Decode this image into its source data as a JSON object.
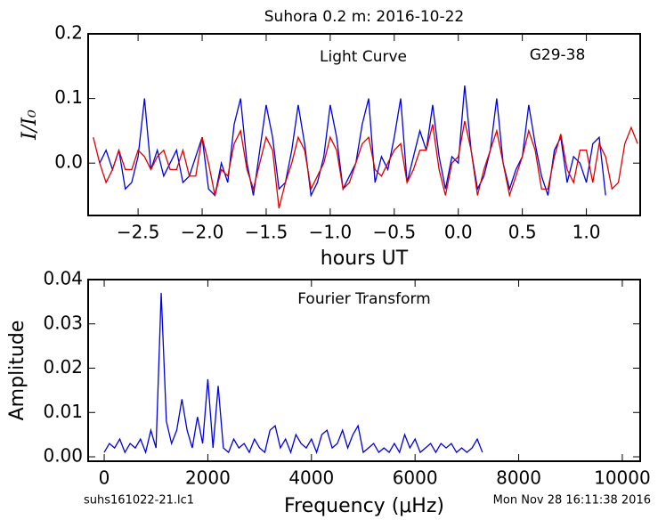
{
  "title": "Suhora 0.2 m:  2016-10-22",
  "footer": {
    "left": "suhs161022-21.lc1",
    "right": "Mon Nov 28 16:11:38 2016"
  },
  "chart_data": [
    {
      "type": "line",
      "title": "Light Curve",
      "annotation": "G29-38",
      "xlabel": "hours UT",
      "ylabel": "I/I₀",
      "xlim": [
        -2.89,
        1.42
      ],
      "ylim": [
        -0.081,
        0.2
      ],
      "xticks": [
        {
          "value": -2.5,
          "label": "−2.5"
        },
        {
          "value": -2.0,
          "label": "−2.0"
        },
        {
          "value": -1.5,
          "label": "−1.5"
        },
        {
          "value": -1.0,
          "label": "−1.0"
        },
        {
          "value": -0.5,
          "label": "−0.5"
        },
        {
          "value": 0,
          "label": "0.0"
        },
        0.5,
        {
          "value": 1.0,
          "label": "1.0"
        }
      ],
      "yticks": [
        {
          "value": 0,
          "label": "0.0"
        },
        0.1,
        0.2
      ],
      "series": [
        {
          "color": "#0000dd",
          "x": [
            -2.8,
            -2.75,
            -2.7,
            -2.65,
            -2.6,
            -2.55,
            -2.5,
            -2.45,
            -2.4,
            -2.35,
            -2.3,
            -2.25,
            -2.2,
            -2.15,
            -2.1,
            -2.05,
            -2.0,
            -1.95,
            -1.9,
            -1.85,
            -1.8,
            -1.75,
            -1.7,
            -1.65,
            -1.6,
            -1.55,
            -1.5,
            -1.45,
            -1.4,
            -1.35,
            -1.3,
            -1.25,
            -1.2,
            -1.15,
            -1.1,
            -1.05,
            -1.0,
            -0.95,
            -0.9,
            -0.85,
            -0.8,
            -0.75,
            -0.7,
            -0.65,
            -0.6,
            -0.55,
            -0.5,
            -0.45,
            -0.4,
            -0.35,
            -0.3,
            -0.25,
            -0.2,
            -0.15,
            -0.1,
            -0.05,
            0.0,
            0.05,
            0.1,
            0.15,
            0.2,
            0.25,
            0.3,
            0.35,
            0.4,
            0.45,
            0.5,
            0.55,
            0.6,
            0.65,
            0.7,
            0.75,
            0.8,
            0.85,
            0.9,
            0.95,
            1.0,
            1.05,
            1.1,
            1.15
          ],
          "values": [
            0.0,
            0.02,
            -0.01,
            0.02,
            -0.04,
            -0.03,
            0.01,
            0.1,
            -0.01,
            0.02,
            -0.02,
            0.0,
            0.02,
            -0.03,
            -0.02,
            0.01,
            0.04,
            -0.04,
            -0.05,
            0.0,
            -0.03,
            0.06,
            0.1,
            0.0,
            -0.05,
            0.02,
            0.09,
            0.04,
            -0.04,
            -0.03,
            0.02,
            0.09,
            0.03,
            -0.05,
            -0.03,
            0.01,
            0.09,
            0.04,
            -0.04,
            -0.02,
            0.0,
            0.06,
            0.1,
            -0.03,
            0.01,
            -0.01,
            0.04,
            0.1,
            -0.03,
            0.01,
            0.05,
            0.02,
            0.09,
            0.01,
            -0.04,
            0.01,
            0.0,
            0.12,
            0.02,
            -0.04,
            -0.02,
            0.02,
            0.1,
            0.0,
            -0.04,
            -0.01,
            0.01,
            0.09,
            0.03,
            -0.02,
            -0.05,
            0.02,
            0.04,
            -0.03,
            0.01,
            0.0,
            -0.03,
            0.03,
            0.04,
            -0.05
          ]
        },
        {
          "color": "#dd0000",
          "x": [
            -2.85,
            -2.8,
            -2.75,
            -2.7,
            -2.65,
            -2.6,
            -2.55,
            -2.5,
            -2.45,
            -2.4,
            -2.35,
            -2.3,
            -2.25,
            -2.2,
            -2.15,
            -2.1,
            -2.05,
            -2.0,
            -1.95,
            -1.9,
            -1.85,
            -1.8,
            -1.75,
            -1.7,
            -1.65,
            -1.6,
            -1.55,
            -1.5,
            -1.45,
            -1.4,
            -1.35,
            -1.3,
            -1.25,
            -1.2,
            -1.15,
            -1.1,
            -1.05,
            -1.0,
            -0.95,
            -0.9,
            -0.85,
            -0.8,
            -0.75,
            -0.7,
            -0.65,
            -0.6,
            -0.55,
            -0.5,
            -0.45,
            -0.4,
            -0.35,
            -0.3,
            -0.25,
            -0.2,
            -0.15,
            -0.1,
            -0.05,
            0.0,
            0.05,
            0.1,
            0.15,
            0.2,
            0.25,
            0.3,
            0.35,
            0.4,
            0.45,
            0.5,
            0.55,
            0.6,
            0.65,
            0.7,
            0.75,
            0.8,
            0.85,
            0.9,
            0.95,
            1.0,
            1.05,
            1.1,
            1.15,
            1.2,
            1.25,
            1.3,
            1.35,
            1.4
          ],
          "values": [
            0.04,
            0.0,
            -0.03,
            -0.01,
            0.02,
            -0.01,
            -0.01,
            0.02,
            0.01,
            -0.01,
            0.01,
            0.02,
            -0.01,
            -0.01,
            0.02,
            -0.02,
            -0.02,
            0.04,
            0.0,
            -0.05,
            -0.01,
            -0.02,
            0.03,
            0.05,
            -0.01,
            -0.04,
            0.0,
            0.04,
            0.02,
            -0.07,
            -0.03,
            0.0,
            0.04,
            0.02,
            -0.04,
            -0.02,
            0.0,
            0.04,
            0.02,
            -0.04,
            -0.03,
            0.0,
            0.03,
            0.04,
            -0.01,
            -0.02,
            0.0,
            0.02,
            0.03,
            -0.03,
            -0.01,
            0.02,
            0.02,
            0.06,
            -0.01,
            -0.05,
            0.0,
            0.01,
            0.065,
            0.02,
            -0.05,
            -0.01,
            0.02,
            0.05,
            0.0,
            -0.05,
            -0.02,
            0.01,
            0.05,
            0.02,
            -0.04,
            -0.04,
            0.01,
            0.045,
            -0.01,
            -0.03,
            0.02,
            0.02,
            -0.03,
            0.03,
            0.01,
            -0.04,
            -0.03,
            0.03,
            0.055,
            0.03
          ]
        }
      ]
    },
    {
      "type": "line",
      "title": "Fourier Transform",
      "xlabel": "Frequency (μHz)",
      "ylabel": "Amplitude",
      "xlim": [
        -310,
        10345
      ],
      "ylim": [
        -0.001,
        0.04
      ],
      "xticks": [
        0,
        2000,
        4000,
        6000,
        8000,
        10000
      ],
      "yticks": [
        {
          "value": 0,
          "label": "0.00"
        },
        0.01,
        0.02,
        0.03,
        0.04
      ],
      "series": [
        {
          "color": "#0000dd",
          "x": [
            0,
            100,
            200,
            300,
            400,
            500,
            600,
            700,
            800,
            900,
            1000,
            1100,
            1200,
            1300,
            1400,
            1500,
            1600,
            1700,
            1800,
            1900,
            2000,
            2100,
            2200,
            2300,
            2400,
            2500,
            2600,
            2700,
            2800,
            2900,
            3000,
            3100,
            3200,
            3300,
            3400,
            3500,
            3600,
            3700,
            3800,
            3900,
            4000,
            4100,
            4200,
            4300,
            4400,
            4500,
            4600,
            4700,
            4800,
            4900,
            5000,
            5100,
            5200,
            5300,
            5400,
            5500,
            5600,
            5700,
            5800,
            5900,
            6000,
            6100,
            6200,
            6300,
            6400,
            6500,
            6600,
            6700,
            6800,
            6900,
            7000,
            7100,
            7200,
            7300
          ],
          "values": [
            0.001,
            0.003,
            0.002,
            0.004,
            0.001,
            0.003,
            0.002,
            0.004,
            0.001,
            0.006,
            0.002,
            0.037,
            0.008,
            0.003,
            0.006,
            0.013,
            0.006,
            0.002,
            0.009,
            0.003,
            0.0175,
            0.002,
            0.016,
            0.002,
            0.001,
            0.004,
            0.002,
            0.003,
            0.001,
            0.004,
            0.002,
            0.001,
            0.006,
            0.007,
            0.002,
            0.004,
            0.001,
            0.005,
            0.003,
            0.002,
            0.004,
            0.001,
            0.005,
            0.006,
            0.002,
            0.003,
            0.006,
            0.002,
            0.005,
            0.007,
            0.001,
            0.002,
            0.003,
            0.001,
            0.002,
            0.001,
            0.003,
            0.001,
            0.005,
            0.002,
            0.004,
            0.001,
            0.002,
            0.003,
            0.001,
            0.003,
            0.002,
            0.003,
            0.001,
            0.002,
            0.001,
            0.002,
            0.004,
            0.001
          ]
        }
      ]
    }
  ]
}
